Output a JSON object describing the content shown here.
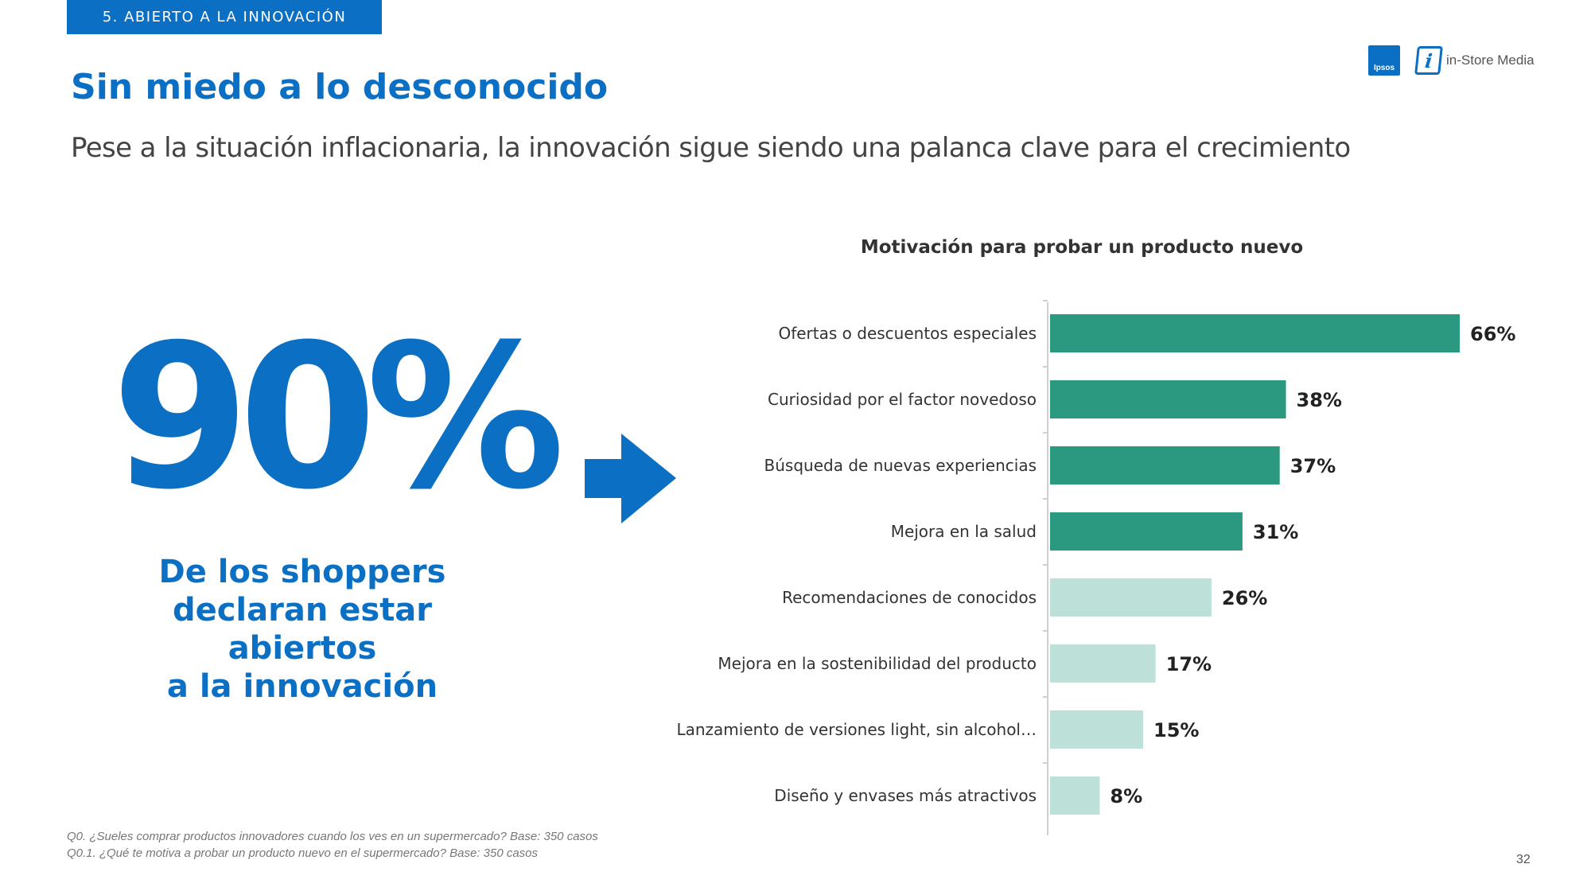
{
  "header": {
    "section": "5. ABIERTO A LA INNOVACIÓN",
    "title": "Sin miedo a lo desconocido",
    "subtitle": "Pese a la situación inflacionaria, la innovación sigue siendo una palanca clave para el crecimiento"
  },
  "logos": {
    "ipsos": "Ipsos",
    "instore": "in-Store Media"
  },
  "highlight": {
    "value": "90%",
    "line1": "De los shoppers",
    "line2": "declaran estar abiertos",
    "line3": "a la innovación"
  },
  "footer": {
    "note1": "Q0. ¿Sueles comprar productos innovadores cuando los ves en un supermercado? Base: 350 casos",
    "note2": "Q0.1. ¿Qué te motiva a probar un producto nuevo en el supermercado?  Base: 350 casos",
    "page": "32"
  },
  "colors": {
    "brand_blue": "#0b6fc4",
    "bar_dark": "#2b9980",
    "bar_light": "#bde0d9"
  },
  "chart_data": {
    "type": "bar",
    "orientation": "horizontal",
    "title": "Motivación para probar un producto nuevo",
    "categories": [
      "Ofertas o descuentos especiales",
      "Curiosidad por el factor novedoso",
      "Búsqueda de nuevas experiencias",
      "Mejora en la salud",
      "Recomendaciones de conocidos",
      "Mejora en la sostenibilidad del producto",
      "Lanzamiento de versiones light, sin alcohol…",
      "Diseño y envases más atractivos"
    ],
    "values": [
      66,
      38,
      37,
      31,
      26,
      17,
      15,
      8
    ],
    "data_labels": [
      "66%",
      "38%",
      "37%",
      "31%",
      "26%",
      "17%",
      "15%",
      "8%"
    ],
    "highlight_tiers": [
      "dark",
      "dark",
      "dark",
      "dark",
      "light",
      "light",
      "light",
      "light"
    ],
    "xlim": [
      0,
      66
    ],
    "grid": false,
    "legend": "none"
  }
}
